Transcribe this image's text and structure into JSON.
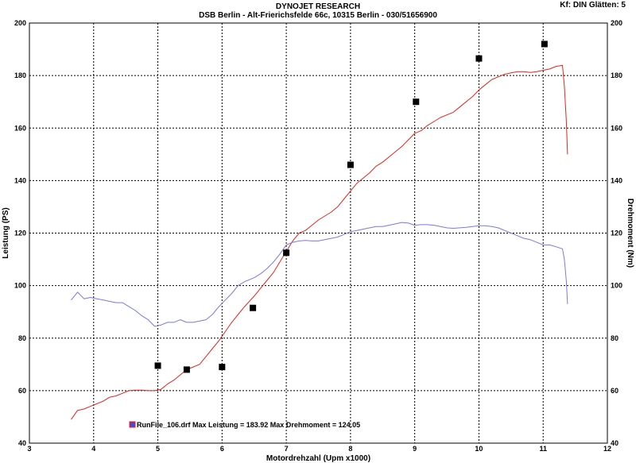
{
  "header": {
    "title": "DYNOJET RESEARCH",
    "subtitle": "DSB Berlin - Alt-Frierichsfelde 66c, 10315 Berlin - 030/51656900",
    "corner": "Kf: DIN  Glätten: 5"
  },
  "chart_data": {
    "type": "line",
    "xlabel": "Motordrehzahl (Upm x1000)",
    "ylabel_left": "Leistung (PS)",
    "ylabel_right": "Drehmoment (Nm)",
    "xlim": [
      3,
      12
    ],
    "ylim": [
      40,
      200
    ],
    "x_ticks": [
      3,
      4,
      5,
      6,
      7,
      8,
      9,
      10,
      11,
      12
    ],
    "y_ticks": [
      40,
      60,
      80,
      100,
      120,
      140,
      160,
      180,
      200
    ],
    "grid": true,
    "colors": {
      "power": "#e8231e",
      "torque": "#7a78e6",
      "markers": "#000000",
      "legend_box": "#4a4ad0"
    },
    "series": [
      {
        "name": "Leistung",
        "unit": "PS",
        "x": [
          3.65,
          3.75,
          3.85,
          3.95,
          4.05,
          4.15,
          4.25,
          4.35,
          4.45,
          4.55,
          4.65,
          4.75,
          4.85,
          4.95,
          5.05,
          5.15,
          5.25,
          5.35,
          5.45,
          5.55,
          5.65,
          5.75,
          5.85,
          5.95,
          6.05,
          6.15,
          6.25,
          6.35,
          6.5,
          6.6,
          6.7,
          6.8,
          6.9,
          7.0,
          7.1,
          7.2,
          7.3,
          7.4,
          7.5,
          7.6,
          7.7,
          7.8,
          7.9,
          8.0,
          8.1,
          8.2,
          8.3,
          8.4,
          8.5,
          8.6,
          8.7,
          8.8,
          8.9,
          9.0,
          9.1,
          9.2,
          9.3,
          9.4,
          9.5,
          9.6,
          9.7,
          9.8,
          9.9,
          10.0,
          10.1,
          10.2,
          10.3,
          10.4,
          10.5,
          10.6,
          10.7,
          10.8,
          10.9,
          11.0,
          11.1,
          11.2,
          11.3,
          11.33,
          11.36,
          11.38
        ],
        "values": [
          49,
          52.5,
          53,
          54,
          55,
          56,
          57.5,
          58,
          59,
          60,
          60.2,
          60.2,
          60,
          60,
          60.5,
          62.5,
          64,
          66,
          68,
          69,
          70,
          73,
          76,
          79,
          82.5,
          86,
          89,
          92,
          96,
          99,
          102,
          105,
          109,
          113,
          117,
          120,
          121,
          123,
          125,
          126.5,
          128,
          130,
          133,
          136,
          139,
          141,
          143,
          145.5,
          147,
          149,
          151,
          153,
          155.5,
          158,
          159,
          161,
          162.5,
          164,
          165,
          166,
          168,
          170,
          172,
          174.5,
          176.5,
          178.5,
          179.5,
          180.5,
          181,
          181.5,
          181.5,
          181.2,
          181.5,
          182,
          182.5,
          183.5,
          183.92,
          176,
          163,
          150
        ]
      },
      {
        "name": "Drehmoment",
        "unit": "Nm",
        "x": [
          3.65,
          3.75,
          3.85,
          3.95,
          4.05,
          4.15,
          4.25,
          4.35,
          4.45,
          4.55,
          4.65,
          4.75,
          4.85,
          4.95,
          5.05,
          5.15,
          5.25,
          5.35,
          5.45,
          5.55,
          5.65,
          5.75,
          5.85,
          5.95,
          6.05,
          6.15,
          6.25,
          6.35,
          6.5,
          6.6,
          6.7,
          6.8,
          6.9,
          7.0,
          7.1,
          7.2,
          7.3,
          7.4,
          7.5,
          7.6,
          7.7,
          7.8,
          7.9,
          8.0,
          8.1,
          8.2,
          8.3,
          8.4,
          8.5,
          8.6,
          8.7,
          8.8,
          8.9,
          9.0,
          9.1,
          9.2,
          9.3,
          9.4,
          9.5,
          9.6,
          9.7,
          9.8,
          9.9,
          10.0,
          10.1,
          10.2,
          10.3,
          10.4,
          10.5,
          10.6,
          10.7,
          10.8,
          10.9,
          11.0,
          11.1,
          11.2,
          11.3,
          11.33,
          11.36,
          11.38
        ],
        "values": [
          94.5,
          97.5,
          95,
          95.5,
          95,
          94.5,
          94,
          93.5,
          93.5,
          92,
          90.5,
          88.5,
          87,
          84.5,
          85,
          86,
          86,
          87,
          86,
          86,
          86.5,
          87,
          89,
          92,
          94.5,
          97,
          100,
          101.5,
          103,
          104.5,
          106.5,
          109,
          112,
          115.5,
          116.5,
          117,
          117.2,
          117,
          117,
          117.5,
          118,
          118.5,
          119.5,
          120.5,
          121,
          121.5,
          122,
          122.5,
          122.5,
          123,
          123.5,
          124.05,
          123.8,
          123,
          123.2,
          123.2,
          123,
          122.5,
          122,
          121.8,
          122,
          122.2,
          122.5,
          122.8,
          122.8,
          122.5,
          122,
          121,
          120,
          119,
          118,
          117.5,
          116.5,
          115.5,
          115.5,
          114.8,
          114,
          110,
          102,
          93
        ]
      },
      {
        "name": "Markierungen",
        "x": [
          5.0,
          5.45,
          6.0,
          6.48,
          7.0,
          8.0,
          9.02,
          10.0,
          11.02
        ],
        "values": [
          69.5,
          68,
          69,
          91.5,
          112.5,
          146,
          170,
          186.5,
          192
        ]
      }
    ],
    "legend": {
      "text": "RunFile_106.drf Max Leistung = 183.92     Max Drehmoment = 124.05",
      "placement": "bottom-left"
    }
  }
}
